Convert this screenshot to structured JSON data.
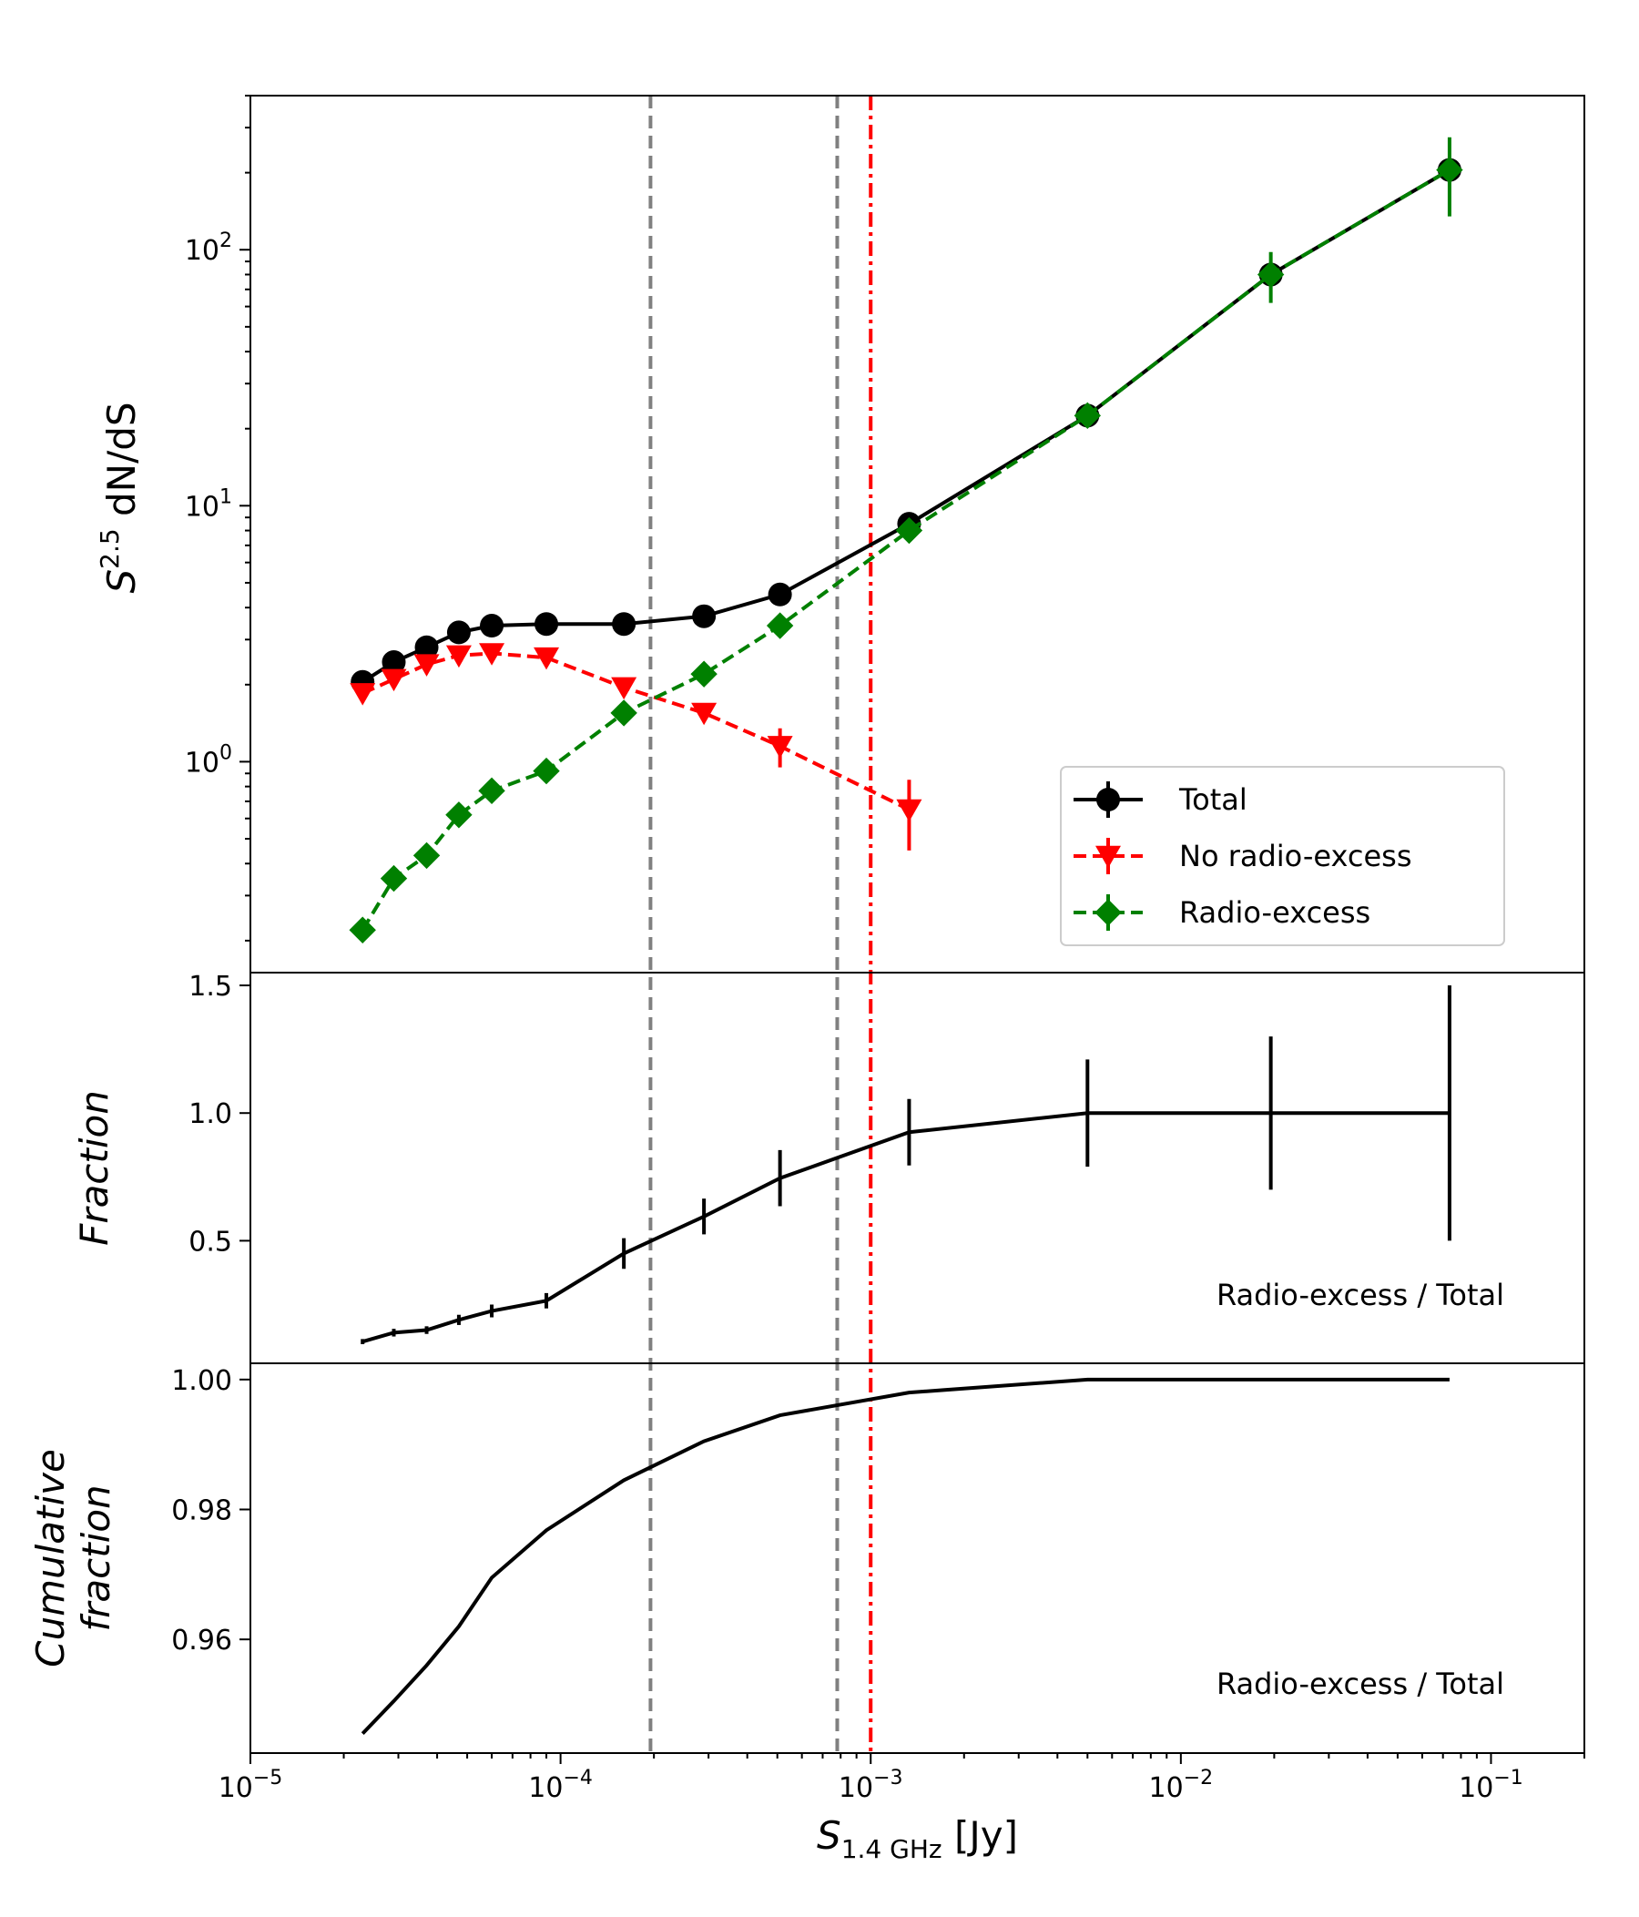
{
  "chart_data": [
    {
      "type": "line",
      "panel": "top",
      "xscale": "log",
      "yscale": "log",
      "xlim": [
        1e-05,
        0.2
      ],
      "ylim": [
        0.15,
        400
      ],
      "ylabel_base": "S",
      "ylabel_sup": "2.5",
      "ylabel_rest": " dN/dS",
      "yticks": [
        {
          "value": 1,
          "base": "10",
          "exp": "0"
        },
        {
          "value": 10,
          "base": "10",
          "exp": "1"
        },
        {
          "value": 100,
          "base": "10",
          "exp": "2"
        }
      ],
      "vlines": [
        {
          "x": 0.000195,
          "style": "dashed",
          "color": "#808080"
        },
        {
          "x": 0.00078,
          "style": "dashed",
          "color": "#808080"
        },
        {
          "x": 0.001,
          "style": "dashdot",
          "color": "#ff0000"
        }
      ],
      "series": [
        {
          "name": "Total",
          "color": "#000000",
          "linestyle": "solid",
          "marker": "circle",
          "x": [
            2.3e-05,
            2.9e-05,
            3.7e-05,
            4.7e-05,
            6e-05,
            9e-05,
            0.00016,
            0.00029,
            0.00051,
            0.00133,
            0.005,
            0.0195,
            0.0735
          ],
          "y": [
            2.05,
            2.45,
            2.8,
            3.2,
            3.4,
            3.45,
            3.45,
            3.7,
            4.5,
            8.5,
            22.5,
            80,
            205
          ]
        },
        {
          "name": "No radio-excess",
          "color": "#ff0000",
          "linestyle": "dashed",
          "marker": "triangle-down",
          "x": [
            2.3e-05,
            2.9e-05,
            3.7e-05,
            4.7e-05,
            6e-05,
            9e-05,
            0.00016,
            0.00029,
            0.00051,
            0.00133
          ],
          "y": [
            1.85,
            2.1,
            2.4,
            2.6,
            2.65,
            2.55,
            1.95,
            1.55,
            1.15,
            0.65
          ],
          "yerr": [
            0.1,
            0.1,
            0.1,
            0.1,
            0.1,
            0.1,
            0.1,
            0.1,
            0.2,
            0.2
          ]
        },
        {
          "name": "Radio-excess",
          "color": "#008000",
          "linestyle": "dashed",
          "marker": "diamond",
          "x": [
            2.3e-05,
            2.9e-05,
            3.7e-05,
            4.7e-05,
            6e-05,
            9e-05,
            0.00016,
            0.00029,
            0.00051,
            0.00133,
            0.005,
            0.0195,
            0.0735
          ],
          "y": [
            0.22,
            0.35,
            0.43,
            0.62,
            0.77,
            0.92,
            1.55,
            2.2,
            3.4,
            8.0,
            22.5,
            80,
            205
          ],
          "yerr": [
            0.02,
            0.03,
            0.03,
            0.04,
            0.05,
            0.06,
            0.1,
            0.15,
            0.2,
            0.4,
            2,
            18,
            70
          ]
        }
      ],
      "legend": {
        "position": "lower right",
        "entries": [
          "Total",
          "No radio-excess",
          "Radio-excess"
        ]
      }
    },
    {
      "type": "line",
      "panel": "middle",
      "xscale": "log",
      "yscale": "linear",
      "ylim": [
        0.02,
        1.55
      ],
      "ylabel": "Fraction",
      "yticks": [
        0.5,
        1.0,
        1.5
      ],
      "ytick_labels": [
        "0.5",
        "1.0",
        "1.5"
      ],
      "annotation": "Radio-excess / Total",
      "series": [
        {
          "name": "Radio-excess / Total",
          "color": "#000000",
          "x": [
            2.3e-05,
            2.9e-05,
            3.7e-05,
            4.7e-05,
            6e-05,
            9e-05,
            0.00016,
            0.00029,
            0.00051,
            0.00133,
            0.005,
            0.0195,
            0.0735
          ],
          "y": [
            0.105,
            0.14,
            0.15,
            0.19,
            0.225,
            0.265,
            0.45,
            0.595,
            0.745,
            0.925,
            1.0,
            1.0,
            1.0
          ],
          "yerr": [
            0.01,
            0.015,
            0.015,
            0.02,
            0.025,
            0.03,
            0.06,
            0.07,
            0.11,
            0.13,
            0.21,
            0.3,
            0.5
          ]
        }
      ]
    },
    {
      "type": "line",
      "panel": "bottom",
      "xscale": "log",
      "yscale": "linear",
      "ylim": [
        0.9425,
        1.0025
      ],
      "ylabel_line1": "Cumulative",
      "ylabel_line2": "fraction",
      "yticks": [
        0.96,
        0.98,
        1.0
      ],
      "ytick_labels": [
        "0.96",
        "0.98",
        "1.00"
      ],
      "annotation": "Radio-excess / Total",
      "xticks": [
        {
          "value": 1e-05,
          "base": "10",
          "exp": "−5"
        },
        {
          "value": 0.0001,
          "base": "10",
          "exp": "−4"
        },
        {
          "value": 0.001,
          "base": "10",
          "exp": "−3"
        },
        {
          "value": 0.01,
          "base": "10",
          "exp": "−2"
        },
        {
          "value": 0.1,
          "base": "10",
          "exp": "−1"
        }
      ],
      "xlabel_base": "S",
      "xlabel_sub": "1.4 GHz",
      "xlabel_rest": " [Jy]",
      "series": [
        {
          "name": "Radio-excess / Total",
          "color": "#000000",
          "x": [
            2.3e-05,
            2.9e-05,
            3.7e-05,
            4.7e-05,
            6e-05,
            9e-05,
            0.00016,
            0.00029,
            0.00051,
            0.00133,
            0.005,
            0.0195,
            0.0735
          ],
          "y": [
            0.9455,
            0.9505,
            0.956,
            0.962,
            0.9695,
            0.9768,
            0.9845,
            0.9905,
            0.9945,
            0.998,
            1.0,
            1.0,
            1.0
          ]
        }
      ]
    }
  ]
}
